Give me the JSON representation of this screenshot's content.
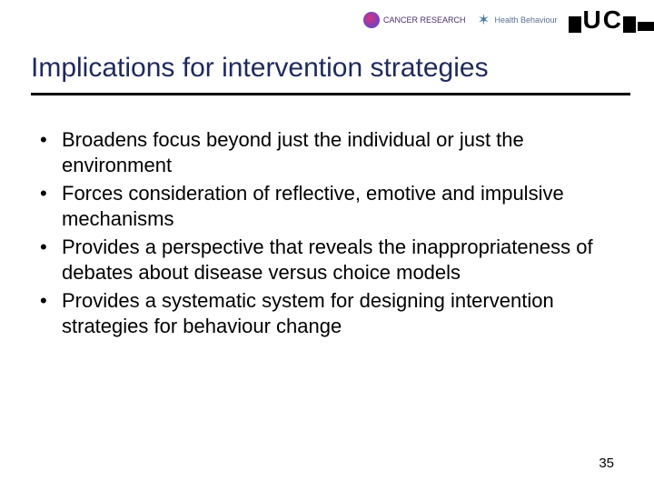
{
  "title": "Implications for intervention strategies",
  "title_color": "#1f2a5b",
  "title_fontsize": 30,
  "rule_color": "#000000",
  "bullets": [
    "Broadens focus beyond just the individual or just the environment",
    "Forces consideration of reflective, emotive and impulsive mechanisms",
    "Provides a perspective that reveals the inappropriateness of debates about disease versus choice models",
    "Provides a systematic system for designing intervention strategies for behaviour change"
  ],
  "bullet_fontsize": 22,
  "bullet_color": "#000000",
  "page_number": "35",
  "background_color": "#ffffff",
  "logos": {
    "left": {
      "label": "CANCER RESEARCH"
    },
    "middle": {
      "label": "Health Behaviour"
    },
    "right": {
      "label": "UC"
    }
  }
}
